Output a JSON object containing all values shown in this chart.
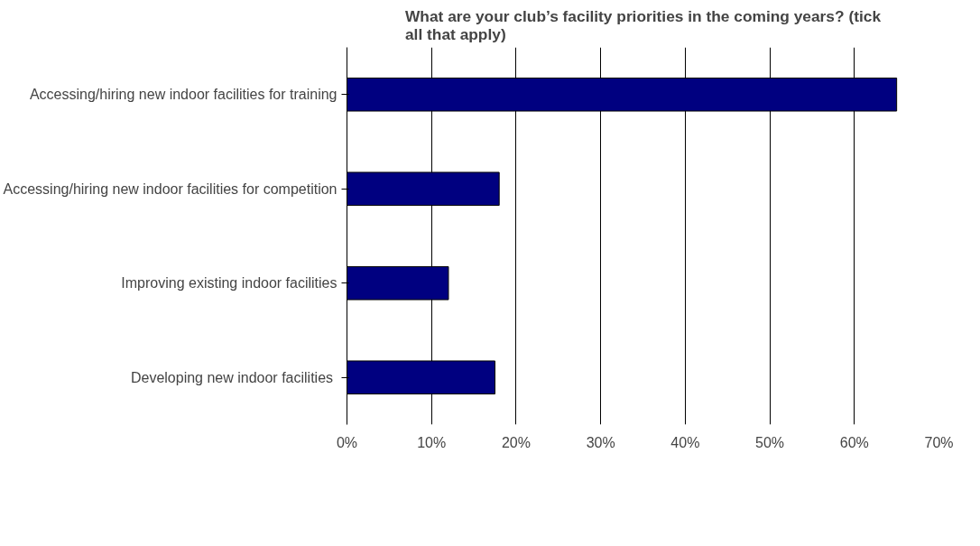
{
  "chart_data": {
    "type": "bar",
    "orientation": "horizontal",
    "title": "What are your club’s facility priorities in the coming years? (tick all that apply)",
    "categories": [
      "Accessing/hiring new indoor facilities for training",
      "Accessing/hiring new indoor facilities for competition",
      "Improving existing indoor facilities",
      "Developing  new indoor facilities"
    ],
    "values": [
      65,
      18,
      12,
      17.5
    ],
    "color": "#000080",
    "xlim": [
      0,
      70
    ],
    "xticks": [
      {
        "value": 0,
        "label": "0%"
      },
      {
        "value": 10,
        "label": "10%"
      },
      {
        "value": 20,
        "label": "20%"
      },
      {
        "value": 30,
        "label": "30%"
      },
      {
        "value": 40,
        "label": "40%"
      },
      {
        "value": 50,
        "label": "50%"
      },
      {
        "value": 60,
        "label": "60%"
      },
      {
        "value": 70,
        "label": "70%"
      }
    ],
    "grid": "x"
  }
}
